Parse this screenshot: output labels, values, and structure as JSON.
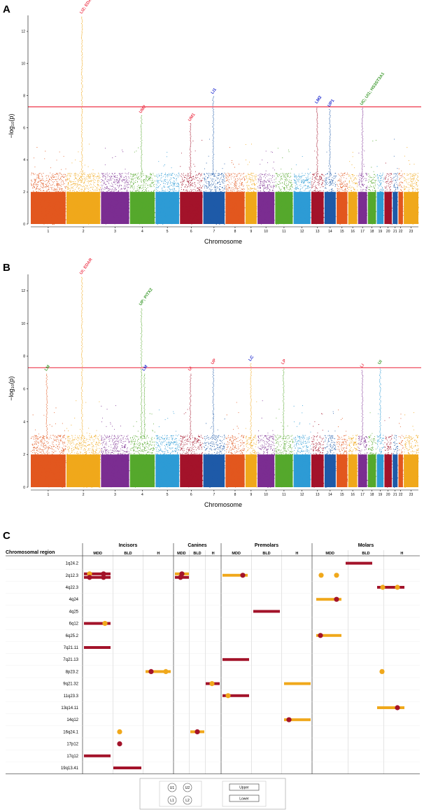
{
  "palette": [
    "#e2571e",
    "#f0a81b",
    "#7b2d91",
    "#55a82c",
    "#2d9bd5",
    "#a3132a",
    "#1e5aa8"
  ],
  "sig_color": "#ee3a4e",
  "chart_data": [
    {
      "type": "scatter",
      "label": "A",
      "chromosomes": [
        "1",
        "2",
        "3",
        "4",
        "5",
        "6",
        "7",
        "8",
        "9",
        "10",
        "11",
        "12",
        "13",
        "14",
        "15",
        "16",
        "17",
        "18",
        "19",
        "20",
        "21",
        "22",
        "23"
      ],
      "chromosome_colors": [
        "#e2571e",
        "#f0a81b",
        "#7b2d91",
        "#55a82c",
        "#2d9bd5",
        "#a3132a",
        "#1e5aa8",
        "#e2571e",
        "#f0a81b",
        "#7b2d91",
        "#55a82c",
        "#2d9bd5",
        "#a3132a",
        "#1e5aa8",
        "#e2571e",
        "#f0a81b",
        "#7b2d91",
        "#55a82c",
        "#2d9bd5",
        "#a3132a",
        "#1e5aa8",
        "#e2571e",
        "#f0a81b"
      ],
      "xlabel": "Chromosome",
      "ylabel": "−log₁₀(p)",
      "ylim": [
        0,
        13
      ],
      "yticks": [
        0,
        2,
        4,
        6,
        8,
        10,
        12
      ],
      "threshold": 7.3,
      "peaks": [
        {
          "label": "LI2; EDAR",
          "chromosome": "2",
          "value": 13.0,
          "color": "#ee3a4e"
        },
        {
          "label": "UM2",
          "chromosome": "4",
          "value": 6.8,
          "color": "#ee3a4e"
        },
        {
          "label": "UM1",
          "chromosome": "6",
          "value": 6.3,
          "color": "#ee3a4e"
        },
        {
          "label": "LI1",
          "chromosome": "7",
          "value": 8.0,
          "color": "#1e2ad0"
        },
        {
          "label": "LM2",
          "chromosome": "13",
          "value": 7.4,
          "color": "#1e2ad0"
        },
        {
          "label": "UP1",
          "chromosome": "14",
          "value": 7.2,
          "color": "#1e2ad0"
        },
        {
          "label": "UC; UI1; HS3ST3A1",
          "chromosome": "17",
          "value": 7.3,
          "color": "#3d9a2e"
        }
      ]
    },
    {
      "type": "scatter",
      "label": "B",
      "chromosomes": [
        "1",
        "2",
        "3",
        "4",
        "5",
        "6",
        "7",
        "8",
        "9",
        "10",
        "11",
        "12",
        "13",
        "14",
        "15",
        "16",
        "17",
        "18",
        "19",
        "20",
        "21",
        "22",
        "23"
      ],
      "chromosome_colors": [
        "#e2571e",
        "#f0a81b",
        "#7b2d91",
        "#55a82c",
        "#2d9bd5",
        "#a3132a",
        "#1e5aa8",
        "#e2571e",
        "#f0a81b",
        "#7b2d91",
        "#55a82c",
        "#2d9bd5",
        "#a3132a",
        "#1e5aa8",
        "#e2571e",
        "#f0a81b",
        "#7b2d91",
        "#55a82c",
        "#2d9bd5",
        "#a3132a",
        "#1e5aa8",
        "#e2571e",
        "#f0a81b"
      ],
      "xlabel": "Chromosome",
      "ylabel": "−log₁₀(p)",
      "ylim": [
        0,
        13
      ],
      "yticks": [
        0,
        2,
        4,
        6,
        8,
        10,
        12
      ],
      "threshold": 7.3,
      "peaks": [
        {
          "label": "LM",
          "chromosome": "1",
          "value": 7.0,
          "color": "#3d9a2e"
        },
        {
          "label": "UI; EDAR",
          "chromosome": "2",
          "value": 12.9,
          "color": "#ee3a4e"
        },
        {
          "label": "UP; PITX2",
          "chromosome": "4",
          "value": 11.0,
          "color": "#3d9a2e"
        },
        {
          "label": "LM",
          "chromosome": "4",
          "value": 7.0,
          "color": "#1e2ad0"
        },
        {
          "label": "UI",
          "chromosome": "6",
          "value": 7.0,
          "color": "#ee3a4e"
        },
        {
          "label": "UP",
          "chromosome": "7",
          "value": 7.4,
          "color": "#ee3a4e"
        },
        {
          "label": "LC",
          "chromosome": "9",
          "value": 7.6,
          "color": "#1e2ad0"
        },
        {
          "label": "LP",
          "chromosome": "11",
          "value": 7.4,
          "color": "#ee3a4e"
        },
        {
          "label": "LI",
          "chromosome": "17",
          "value": 7.2,
          "color": "#ee3a4e"
        },
        {
          "label": "UI",
          "chromosome": "19",
          "value": 7.4,
          "color": "#3d9a2e"
        }
      ]
    },
    {
      "type": "table",
      "label": "C",
      "row_header": "Chromosomal region",
      "groups": [
        {
          "name": "Incisors",
          "subs": [
            "MDD",
            "BLD",
            "H"
          ]
        },
        {
          "name": "Canines",
          "subs": [
            "MDD",
            "BLD",
            "H"
          ]
        },
        {
          "name": "Premolars",
          "subs": [
            "MDD",
            "BLD",
            "H"
          ]
        },
        {
          "name": "Molars",
          "subs": [
            "MDD",
            "BLD",
            "H"
          ]
        }
      ],
      "rows": [
        "1q24.2",
        "2q12.3",
        "4q22.3",
        "4q24",
        "4q25",
        "6q12",
        "6q25.2",
        "7q21.11",
        "7q21.13",
        "8p23.2",
        "9q21.32",
        "11q23.3",
        "13q14.11",
        "14q12",
        "16q24.1",
        "17p12",
        "17q12",
        "19q13.41"
      ],
      "upper_color": "#f0a81b",
      "lower_color": "#a3132a",
      "legend": {
        "circles": [
          "U1",
          "U2",
          "L1",
          "L2"
        ],
        "bars": [
          "Upper",
          "Lower"
        ]
      }
    }
  ]
}
